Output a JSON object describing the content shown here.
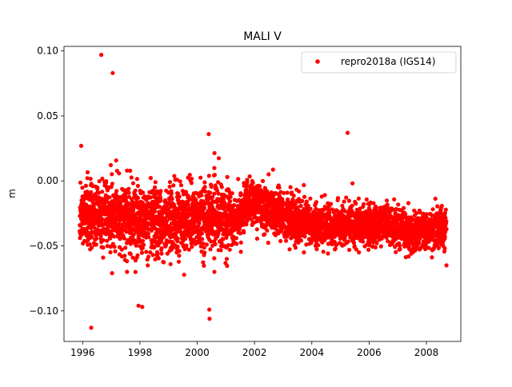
{
  "chart_data": {
    "type": "scatter",
    "title": "MALI V",
    "xlabel": "",
    "ylabel": "m",
    "xlim": [
      1995.35,
      2009.2
    ],
    "ylim": [
      -0.1235,
      0.1035
    ],
    "x_ticks": [
      1996,
      1998,
      2000,
      2002,
      2004,
      2006,
      2008
    ],
    "x_tick_labels": [
      "1996",
      "1998",
      "2000",
      "2002",
      "2004",
      "2006",
      "2008"
    ],
    "y_ticks": [
      0.1,
      0.05,
      0.0,
      -0.05,
      -0.1
    ],
    "y_tick_labels": [
      "0.10",
      "0.05",
      "0.00",
      "−0.05",
      "−0.10"
    ],
    "grid": false,
    "legend_position": "top-right",
    "series": [
      {
        "name": "repro2018a (IGS14)",
        "color": "#ff0000",
        "marker": "circle",
        "trend_x": [
          1995.9,
          1996.5,
          1997.0,
          1997.5,
          1998.0,
          1998.5,
          1999.0,
          1999.5,
          2000.0,
          2000.5,
          2001.0,
          2001.4,
          2001.8,
          2002.3,
          2003.0,
          2003.5,
          2004.0,
          2004.5,
          2005.0,
          2005.5,
          2006.0,
          2006.5,
          2007.0,
          2007.5,
          2008.0,
          2008.4,
          2008.7
        ],
        "trend_y": [
          -0.025,
          -0.027,
          -0.025,
          -0.028,
          -0.032,
          -0.034,
          -0.031,
          -0.03,
          -0.029,
          -0.026,
          -0.028,
          -0.03,
          -0.016,
          -0.02,
          -0.027,
          -0.03,
          -0.033,
          -0.035,
          -0.034,
          -0.034,
          -0.035,
          -0.033,
          -0.036,
          -0.04,
          -0.038,
          -0.036,
          -0.037
        ],
        "outliers": [
          {
            "x": 1995.95,
            "y": 0.027
          },
          {
            "x": 1996.3,
            "y": -0.113
          },
          {
            "x": 1996.65,
            "y": 0.097
          },
          {
            "x": 1997.05,
            "y": 0.083
          },
          {
            "x": 1997.55,
            "y": -0.07
          },
          {
            "x": 1997.95,
            "y": -0.096
          },
          {
            "x": 1998.08,
            "y": -0.097
          },
          {
            "x": 2000.4,
            "y": 0.036
          },
          {
            "x": 2000.42,
            "y": -0.099
          },
          {
            "x": 2000.43,
            "y": -0.106
          },
          {
            "x": 2000.6,
            "y": -0.07
          },
          {
            "x": 2005.25,
            "y": 0.037
          },
          {
            "x": 2008.7,
            "y": -0.065
          }
        ]
      }
    ]
  }
}
